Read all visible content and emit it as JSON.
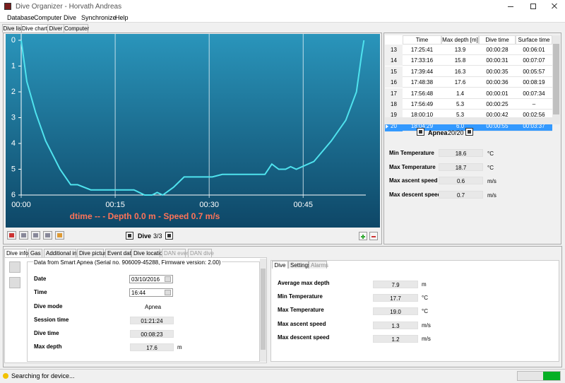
{
  "window": {
    "title": "Dive Organizer - Horvath Andreas"
  },
  "menu": [
    "Database",
    "Computer",
    "Dive",
    "Synchronize",
    "Help"
  ],
  "tabs": [
    "Dive list",
    "Dive chart",
    "Diver",
    "Computer"
  ],
  "chart_data": {
    "type": "line",
    "caption": "dtime -- - Depth 0.0 m - Speed 0.7 m/s",
    "color": "#4fe3ee",
    "grid": true,
    "x": [
      0,
      0.9,
      2.3,
      3.9,
      6.2,
      7.9,
      9.0,
      11.1,
      18,
      19.7,
      20.9,
      21.7,
      22.6,
      24.3,
      26,
      30.5,
      32.1,
      38.9,
      40,
      41.1,
      42.2,
      43,
      43.9,
      46.7,
      49.5,
      51.8,
      53.5,
      54.3,
      54.7
    ],
    "values": [
      0,
      1.6,
      2.8,
      3.9,
      5.0,
      5.6,
      5.6,
      5.8,
      5.8,
      6.0,
      6.0,
      5.9,
      6.0,
      5.7,
      5.3,
      5.3,
      5.2,
      5.2,
      4.8,
      5.0,
      5.0,
      4.9,
      5.0,
      4.7,
      3.9,
      3.1,
      2.0,
      0.6,
      0
    ],
    "xlim": [
      0,
      55
    ],
    "xticks": [
      {
        "value": 0,
        "label": "00:00"
      },
      {
        "value": 15,
        "label": "00:15"
      },
      {
        "value": 30,
        "label": "00:30"
      },
      {
        "value": 45,
        "label": "00:45"
      }
    ],
    "ylim": [
      6,
      0
    ],
    "yticks": [
      0,
      1,
      2,
      3,
      4,
      5,
      6
    ]
  },
  "chart_controls": {
    "dive_label": "Dive",
    "dive_count": "3/3"
  },
  "dives_table": {
    "columns": [
      "Time",
      "Max depth [m]",
      "Dive time",
      "Surface time"
    ],
    "rows": [
      [
        "13",
        "17:25:41",
        "13.9",
        "00:00:28",
        "00:06:01"
      ],
      [
        "14",
        "17:33:16",
        "15.8",
        "00:00:31",
        "00:07:07"
      ],
      [
        "15",
        "17:39:44",
        "16.3",
        "00:00:35",
        "00:05:57"
      ],
      [
        "16",
        "17:48:38",
        "17.6",
        "00:00:36",
        "00:08:19"
      ],
      [
        "17",
        "17:56:48",
        "1.4",
        "00:00:01",
        "00:07:34"
      ],
      [
        "18",
        "17:56:49",
        "5.3",
        "00:00:25",
        "–"
      ],
      [
        "19",
        "18:00:10",
        "5.3",
        "00:00:42",
        "00:02:56"
      ],
      [
        "20",
        "18:04:29",
        "6.0",
        "00:00:55",
        "00:03:37"
      ]
    ]
  },
  "apnea_nav": {
    "label": "Apnea",
    "count": "20/20"
  },
  "dive_stats": [
    {
      "label": "Min Temperature",
      "value": "18.6",
      "unit": "°C"
    },
    {
      "label": "Max Temperature",
      "value": "18.7",
      "unit": "°C"
    },
    {
      "label": "Max ascent speed",
      "value": "0.6",
      "unit": "m/s"
    },
    {
      "label": "Max descent speed",
      "value": "0.7",
      "unit": "m/s"
    }
  ],
  "bottom_tabs": [
    "Dive info",
    "Gas",
    "Additional info",
    "Dive picture",
    "Event data",
    "Dive location",
    "DAN event",
    "DAN dive"
  ],
  "dive_info": {
    "source": "Data from Smart Apnea (Serial no. 906009-45288, Firmware version: 2.00)",
    "fields": [
      {
        "label": "Date",
        "value": "03/10/2016"
      },
      {
        "label": "Time",
        "value": "16:44"
      },
      {
        "label": "Dive mode",
        "value": "Apnea"
      },
      {
        "label": "Session time",
        "value": "01:21:24"
      },
      {
        "label": "Dive time",
        "value": "00:08:23"
      },
      {
        "label": "Max depth",
        "value": "17.6",
        "unit": "m"
      }
    ]
  },
  "session_tabs": [
    "Dive",
    "Settings",
    "Alarms"
  ],
  "session_stats": [
    {
      "label": "Average max depth",
      "value": "7.9",
      "unit": "m"
    },
    {
      "label": "Min Temperature",
      "value": "17.7",
      "unit": "°C"
    },
    {
      "label": "Max Temperature",
      "value": "19.0",
      "unit": "°C"
    },
    {
      "label": "Max ascent speed",
      "value": "1.3",
      "unit": "m/s"
    },
    {
      "label": "Max descent speed",
      "value": "1.2",
      "unit": "m/s"
    }
  ],
  "status": "Searching for device..."
}
